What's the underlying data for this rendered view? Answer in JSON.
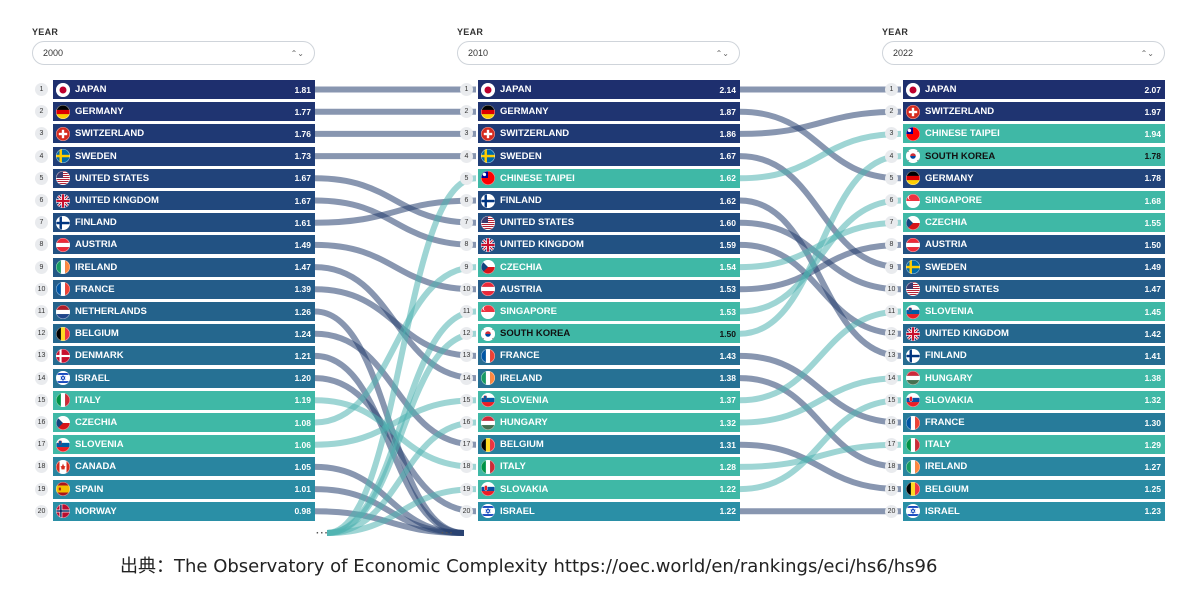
{
  "columns": [
    {
      "label": "YEAR",
      "year": "2000",
      "rows": [
        {
          "rank": "1",
          "country": "JAPAN",
          "value": "1.81",
          "flag": "jp"
        },
        {
          "rank": "2",
          "country": "GERMANY",
          "value": "1.77",
          "flag": "de"
        },
        {
          "rank": "3",
          "country": "SWITZERLAND",
          "value": "1.76",
          "flag": "ch"
        },
        {
          "rank": "4",
          "country": "SWEDEN",
          "value": "1.73",
          "flag": "se"
        },
        {
          "rank": "5",
          "country": "UNITED STATES",
          "value": "1.67",
          "flag": "us"
        },
        {
          "rank": "6",
          "country": "UNITED KINGDOM",
          "value": "1.67",
          "flag": "gb"
        },
        {
          "rank": "7",
          "country": "FINLAND",
          "value": "1.61",
          "flag": "fi"
        },
        {
          "rank": "8",
          "country": "AUSTRIA",
          "value": "1.49",
          "flag": "at"
        },
        {
          "rank": "9",
          "country": "IRELAND",
          "value": "1.47",
          "flag": "ie"
        },
        {
          "rank": "10",
          "country": "FRANCE",
          "value": "1.39",
          "flag": "fr"
        },
        {
          "rank": "11",
          "country": "NETHERLANDS",
          "value": "1.26",
          "flag": "nl"
        },
        {
          "rank": "12",
          "country": "BELGIUM",
          "value": "1.24",
          "flag": "be"
        },
        {
          "rank": "13",
          "country": "DENMARK",
          "value": "1.21",
          "flag": "dk"
        },
        {
          "rank": "14",
          "country": "ISRAEL",
          "value": "1.20",
          "flag": "il"
        },
        {
          "rank": "15",
          "country": "ITALY",
          "value": "1.19",
          "flag": "it"
        },
        {
          "rank": "16",
          "country": "CZECHIA",
          "value": "1.08",
          "flag": "cz"
        },
        {
          "rank": "17",
          "country": "SLOVENIA",
          "value": "1.06",
          "flag": "si"
        },
        {
          "rank": "18",
          "country": "CANADA",
          "value": "1.05",
          "flag": "ca"
        },
        {
          "rank": "19",
          "country": "SPAIN",
          "value": "1.01",
          "flag": "es"
        },
        {
          "rank": "20",
          "country": "NORWAY",
          "value": "0.98",
          "flag": "no"
        }
      ]
    },
    {
      "label": "YEAR",
      "year": "2010",
      "rows": [
        {
          "rank": "1",
          "country": "JAPAN",
          "value": "2.14",
          "flag": "jp"
        },
        {
          "rank": "2",
          "country": "GERMANY",
          "value": "1.87",
          "flag": "de"
        },
        {
          "rank": "3",
          "country": "SWITZERLAND",
          "value": "1.86",
          "flag": "ch"
        },
        {
          "rank": "4",
          "country": "SWEDEN",
          "value": "1.67",
          "flag": "se"
        },
        {
          "rank": "5",
          "country": "CHINESE TAIPEI",
          "value": "1.62",
          "flag": "tw"
        },
        {
          "rank": "6",
          "country": "FINLAND",
          "value": "1.62",
          "flag": "fi"
        },
        {
          "rank": "7",
          "country": "UNITED STATES",
          "value": "1.60",
          "flag": "us"
        },
        {
          "rank": "8",
          "country": "UNITED KINGDOM",
          "value": "1.59",
          "flag": "gb"
        },
        {
          "rank": "9",
          "country": "CZECHIA",
          "value": "1.54",
          "flag": "cz"
        },
        {
          "rank": "10",
          "country": "AUSTRIA",
          "value": "1.53",
          "flag": "at"
        },
        {
          "rank": "11",
          "country": "SINGAPORE",
          "value": "1.53",
          "flag": "sg"
        },
        {
          "rank": "12",
          "country": "SOUTH KOREA",
          "value": "1.50",
          "flag": "kr"
        },
        {
          "rank": "13",
          "country": "FRANCE",
          "value": "1.43",
          "flag": "fr"
        },
        {
          "rank": "14",
          "country": "IRELAND",
          "value": "1.38",
          "flag": "ie"
        },
        {
          "rank": "15",
          "country": "SLOVENIA",
          "value": "1.37",
          "flag": "si"
        },
        {
          "rank": "16",
          "country": "HUNGARY",
          "value": "1.32",
          "flag": "hu"
        },
        {
          "rank": "17",
          "country": "BELGIUM",
          "value": "1.31",
          "flag": "be"
        },
        {
          "rank": "18",
          "country": "ITALY",
          "value": "1.28",
          "flag": "it"
        },
        {
          "rank": "19",
          "country": "SLOVAKIA",
          "value": "1.22",
          "flag": "sk"
        },
        {
          "rank": "20",
          "country": "ISRAEL",
          "value": "1.22",
          "flag": "il"
        }
      ]
    },
    {
      "label": "YEAR",
      "year": "2022",
      "rows": [
        {
          "rank": "1",
          "country": "JAPAN",
          "value": "2.07",
          "flag": "jp"
        },
        {
          "rank": "2",
          "country": "SWITZERLAND",
          "value": "1.97",
          "flag": "ch"
        },
        {
          "rank": "3",
          "country": "CHINESE TAIPEI",
          "value": "1.94",
          "flag": "tw"
        },
        {
          "rank": "4",
          "country": "SOUTH KOREA",
          "value": "1.78",
          "flag": "kr"
        },
        {
          "rank": "5",
          "country": "GERMANY",
          "value": "1.78",
          "flag": "de"
        },
        {
          "rank": "6",
          "country": "SINGAPORE",
          "value": "1.68",
          "flag": "sg"
        },
        {
          "rank": "7",
          "country": "CZECHIA",
          "value": "1.55",
          "flag": "cz"
        },
        {
          "rank": "8",
          "country": "AUSTRIA",
          "value": "1.50",
          "flag": "at"
        },
        {
          "rank": "9",
          "country": "SWEDEN",
          "value": "1.49",
          "flag": "se"
        },
        {
          "rank": "10",
          "country": "UNITED STATES",
          "value": "1.47",
          "flag": "us"
        },
        {
          "rank": "11",
          "country": "SLOVENIA",
          "value": "1.45",
          "flag": "si"
        },
        {
          "rank": "12",
          "country": "UNITED KINGDOM",
          "value": "1.42",
          "flag": "gb"
        },
        {
          "rank": "13",
          "country": "FINLAND",
          "value": "1.41",
          "flag": "fi"
        },
        {
          "rank": "14",
          "country": "HUNGARY",
          "value": "1.38",
          "flag": "hu"
        },
        {
          "rank": "15",
          "country": "SLOVAKIA",
          "value": "1.32",
          "flag": "sk"
        },
        {
          "rank": "16",
          "country": "FRANCE",
          "value": "1.30",
          "flag": "fr"
        },
        {
          "rank": "17",
          "country": "ITALY",
          "value": "1.29",
          "flag": "it"
        },
        {
          "rank": "18",
          "country": "IRELAND",
          "value": "1.27",
          "flag": "ie"
        },
        {
          "rank": "19",
          "country": "BELGIUM",
          "value": "1.25",
          "flag": "be"
        },
        {
          "rank": "20",
          "country": "ISRAEL",
          "value": "1.23",
          "flag": "il"
        }
      ]
    }
  ],
  "colors": {
    "top": "#1e2f6e",
    "bottom": "#2a8fa6",
    "highlight": "#3fb8a6",
    "ribbon_dark": "#27406f",
    "ribbon_light": "#4fb3b0"
  },
  "highlight_countries": [
    "CHINESE TAIPEI",
    "SOUTH KOREA",
    "SINGAPORE",
    "CZECHIA",
    "SLOVENIA",
    "HUNGARY",
    "SLOVAKIA",
    "ITALY"
  ],
  "dark_text_countries": [
    "SOUTH KOREA"
  ],
  "overflow_marker": "···",
  "source_text": "出典：The Observatory of Economic Complexity https://oec.world/en/rankings/eci/hs6/hs96",
  "chart_data": {
    "type": "table",
    "title": "",
    "metric": "",
    "years": [
      "2000",
      "2010",
      "2022"
    ],
    "rankings": {
      "2000": [
        [
          "JAPAN",
          1.81
        ],
        [
          "GERMANY",
          1.77
        ],
        [
          "SWITZERLAND",
          1.76
        ],
        [
          "SWEDEN",
          1.73
        ],
        [
          "UNITED STATES",
          1.67
        ],
        [
          "UNITED KINGDOM",
          1.67
        ],
        [
          "FINLAND",
          1.61
        ],
        [
          "AUSTRIA",
          1.49
        ],
        [
          "IRELAND",
          1.47
        ],
        [
          "FRANCE",
          1.39
        ],
        [
          "NETHERLANDS",
          1.26
        ],
        [
          "BELGIUM",
          1.24
        ],
        [
          "DENMARK",
          1.21
        ],
        [
          "ISRAEL",
          1.2
        ],
        [
          "ITALY",
          1.19
        ],
        [
          "CZECHIA",
          1.08
        ],
        [
          "SLOVENIA",
          1.06
        ],
        [
          "CANADA",
          1.05
        ],
        [
          "SPAIN",
          1.01
        ],
        [
          "NORWAY",
          0.98
        ]
      ],
      "2010": [
        [
          "JAPAN",
          2.14
        ],
        [
          "GERMANY",
          1.87
        ],
        [
          "SWITZERLAND",
          1.86
        ],
        [
          "SWEDEN",
          1.67
        ],
        [
          "CHINESE TAIPEI",
          1.62
        ],
        [
          "FINLAND",
          1.62
        ],
        [
          "UNITED STATES",
          1.6
        ],
        [
          "UNITED KINGDOM",
          1.59
        ],
        [
          "CZECHIA",
          1.54
        ],
        [
          "AUSTRIA",
          1.53
        ],
        [
          "SINGAPORE",
          1.53
        ],
        [
          "SOUTH KOREA",
          1.5
        ],
        [
          "FRANCE",
          1.43
        ],
        [
          "IRELAND",
          1.38
        ],
        [
          "SLOVENIA",
          1.37
        ],
        [
          "HUNGARY",
          1.32
        ],
        [
          "BELGIUM",
          1.31
        ],
        [
          "ITALY",
          1.28
        ],
        [
          "SLOVAKIA",
          1.22
        ],
        [
          "ISRAEL",
          1.22
        ]
      ],
      "2022": [
        [
          "JAPAN",
          2.07
        ],
        [
          "SWITZERLAND",
          1.97
        ],
        [
          "CHINESE TAIPEI",
          1.94
        ],
        [
          "SOUTH KOREA",
          1.78
        ],
        [
          "GERMANY",
          1.78
        ],
        [
          "SINGAPORE",
          1.68
        ],
        [
          "CZECHIA",
          1.55
        ],
        [
          "AUSTRIA",
          1.5
        ],
        [
          "SWEDEN",
          1.49
        ],
        [
          "UNITED STATES",
          1.47
        ],
        [
          "SLOVENIA",
          1.45
        ],
        [
          "UNITED KINGDOM",
          1.42
        ],
        [
          "FINLAND",
          1.41
        ],
        [
          "HUNGARY",
          1.38
        ],
        [
          "SLOVAKIA",
          1.32
        ],
        [
          "FRANCE",
          1.3
        ],
        [
          "ITALY",
          1.29
        ],
        [
          "IRELAND",
          1.27
        ],
        [
          "BELGIUM",
          1.25
        ],
        [
          "ISRAEL",
          1.23
        ]
      ]
    }
  }
}
